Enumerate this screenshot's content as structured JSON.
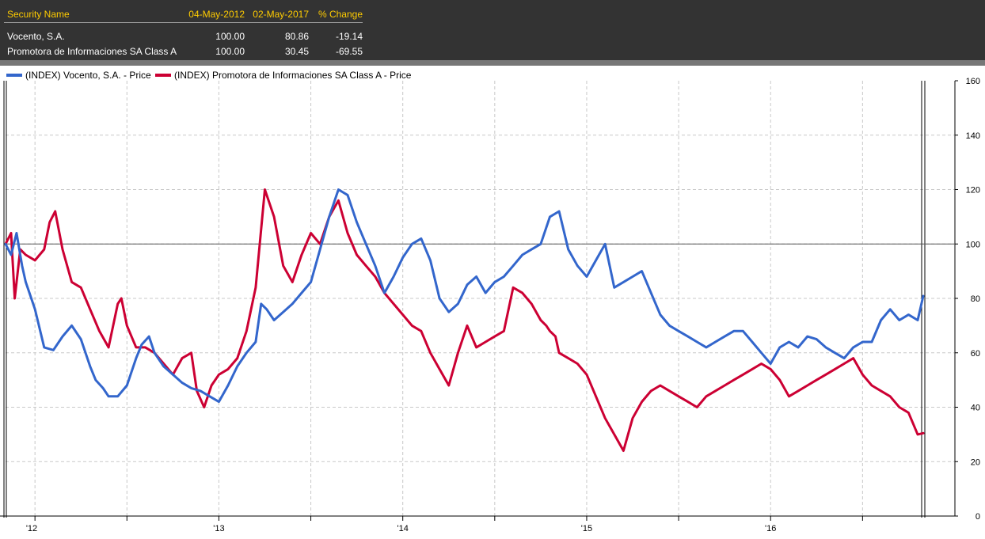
{
  "table": {
    "headers": [
      "Security Name",
      "04-May-2012",
      "02-May-2017",
      "% Change"
    ],
    "rows": [
      {
        "name": "Vocento, S.A.",
        "start": "100.00",
        "end": "80.86",
        "change": "-19.14"
      },
      {
        "name": "Promotora de Informaciones SA Class A",
        "start": "100.00",
        "end": "30.45",
        "change": "-69.55"
      }
    ]
  },
  "colors": {
    "header_bg": "#333333",
    "header_text": "#ffcc00",
    "series1": "#3366cc",
    "series2": "#cc0033"
  },
  "chart_data": {
    "type": "line",
    "title": "",
    "xlabel": "",
    "ylabel": "",
    "ylim": [
      0,
      160
    ],
    "yticks": [
      0,
      20,
      40,
      60,
      80,
      100,
      120,
      140,
      160
    ],
    "reference_line": 100,
    "x_range": [
      2012.34,
      2017.33
    ],
    "xtick_labels": [
      {
        "label": "'12",
        "x": 2012.0
      },
      {
        "label": "'13",
        "x": 2013.0
      },
      {
        "label": "'14",
        "x": 2014.0
      },
      {
        "label": "'15",
        "x": 2015.0
      },
      {
        "label": "'16",
        "x": 2016.0
      }
    ],
    "grid_x": [
      2012.5,
      2013.0,
      2013.5,
      2014.0,
      2014.5,
      2015.0,
      2015.5,
      2016.0,
      2016.5,
      2017.0
    ],
    "series": [
      {
        "name": "(INDEX) Vocento, S.A. - Price",
        "x": [
          2012.34,
          2012.37,
          2012.4,
          2012.43,
          2012.45,
          2012.47,
          2012.5,
          2012.55,
          2012.6,
          2012.65,
          2012.7,
          2012.75,
          2012.8,
          2012.83,
          2012.87,
          2012.9,
          2012.95,
          2013.0,
          2013.05,
          2013.08,
          2013.12,
          2013.15,
          2013.2,
          2013.25,
          2013.3,
          2013.35,
          2013.4,
          2013.45,
          2013.5,
          2013.55,
          2013.6,
          2013.65,
          2013.7,
          2013.73,
          2013.76,
          2013.8,
          2013.85,
          2013.9,
          2013.95,
          2014.0,
          2014.05,
          2014.1,
          2014.15,
          2014.2,
          2014.25,
          2014.3,
          2014.35,
          2014.4,
          2014.45,
          2014.5,
          2014.55,
          2014.6,
          2014.65,
          2014.7,
          2014.75,
          2014.8,
          2014.85,
          2014.9,
          2014.95,
          2015.0,
          2015.05,
          2015.1,
          2015.15,
          2015.2,
          2015.25,
          2015.3,
          2015.35,
          2015.4,
          2015.45,
          2015.5,
          2015.55,
          2015.6,
          2015.65,
          2015.7,
          2015.75,
          2015.8,
          2015.85,
          2015.9,
          2015.95,
          2016.0,
          2016.05,
          2016.1,
          2016.15,
          2016.2,
          2016.25,
          2016.3,
          2016.35,
          2016.4,
          2016.45,
          2016.5,
          2016.55,
          2016.6,
          2016.65,
          2016.7,
          2016.75,
          2016.8,
          2016.85,
          2016.9,
          2016.95,
          2017.0,
          2017.05,
          2017.1,
          2017.15,
          2017.2,
          2017.25,
          2017.3,
          2017.33
        ],
        "values": [
          100,
          96,
          104,
          92,
          86,
          82,
          76,
          62,
          61,
          66,
          70,
          65,
          55,
          50,
          47,
          44,
          44,
          48,
          58,
          63,
          66,
          60,
          55,
          52,
          49,
          47,
          46,
          44,
          42,
          48,
          55,
          60,
          64,
          78,
          76,
          72,
          75,
          78,
          82,
          86,
          98,
          110,
          120,
          118,
          108,
          100,
          92,
          82,
          88,
          95,
          100,
          102,
          94,
          80,
          75,
          78,
          85,
          88,
          82,
          86,
          88,
          92,
          96,
          98,
          100,
          110,
          112,
          98,
          92,
          88,
          94,
          100,
          84,
          86,
          88,
          90,
          82,
          74,
          70,
          68,
          66,
          64,
          62,
          64,
          66,
          68,
          68,
          64,
          60,
          56,
          62,
          64,
          62,
          66,
          65,
          62,
          60,
          58,
          62,
          64,
          64,
          72,
          76,
          72,
          74,
          72,
          80.86
        ]
      },
      {
        "name": "(INDEX) Promotora de Informaciones SA Class A - Price",
        "x": [
          2012.34,
          2012.37,
          2012.39,
          2012.42,
          2012.45,
          2012.5,
          2012.55,
          2012.58,
          2012.61,
          2012.65,
          2012.7,
          2012.75,
          2012.8,
          2012.85,
          2012.9,
          2012.95,
          2012.97,
          2013.0,
          2013.05,
          2013.1,
          2013.15,
          2013.2,
          2013.25,
          2013.3,
          2013.35,
          2013.38,
          2013.42,
          2013.46,
          2013.48,
          2013.5,
          2013.55,
          2013.6,
          2013.65,
          2013.7,
          2013.75,
          2013.8,
          2013.85,
          2013.9,
          2013.95,
          2014.0,
          2014.05,
          2014.1,
          2014.15,
          2014.2,
          2014.25,
          2014.3,
          2014.35,
          2014.4,
          2014.45,
          2014.5,
          2014.55,
          2014.6,
          2014.65,
          2014.7,
          2014.75,
          2014.8,
          2014.85,
          2014.9,
          2014.95,
          2015.0,
          2015.05,
          2015.1,
          2015.15,
          2015.2,
          2015.25,
          2015.28,
          2015.3,
          2015.33,
          2015.35,
          2015.4,
          2015.45,
          2015.5,
          2015.55,
          2015.6,
          2015.65,
          2015.7,
          2015.75,
          2015.8,
          2015.85,
          2015.9,
          2015.95,
          2016.0,
          2016.05,
          2016.1,
          2016.15,
          2016.2,
          2016.25,
          2016.3,
          2016.35,
          2016.4,
          2016.45,
          2016.5,
          2016.55,
          2016.6,
          2016.65,
          2016.7,
          2016.75,
          2016.8,
          2016.85,
          2016.9,
          2016.95,
          2017.0,
          2017.05,
          2017.1,
          2017.15,
          2017.2,
          2017.25,
          2017.3,
          2017.33
        ],
        "values": [
          100,
          104,
          80,
          98,
          96,
          94,
          98,
          108,
          112,
          98,
          86,
          84,
          76,
          68,
          62,
          78,
          80,
          70,
          62,
          62,
          60,
          56,
          52,
          58,
          60,
          46,
          40,
          48,
          50,
          52,
          54,
          58,
          68,
          84,
          120,
          110,
          92,
          86,
          96,
          104,
          100,
          110,
          116,
          104,
          96,
          92,
          88,
          82,
          78,
          74,
          70,
          68,
          60,
          54,
          48,
          60,
          70,
          62,
          64,
          66,
          68,
          84,
          82,
          78,
          72,
          70,
          68,
          66,
          60,
          58,
          56,
          52,
          44,
          36,
          30,
          24,
          36,
          42,
          46,
          48,
          46,
          44,
          42,
          40,
          44,
          46,
          48,
          50,
          52,
          54,
          56,
          54,
          50,
          44,
          46,
          48,
          50,
          52,
          54,
          56,
          58,
          52,
          48,
          46,
          44,
          40,
          38,
          30,
          30.45
        ]
      }
    ]
  }
}
